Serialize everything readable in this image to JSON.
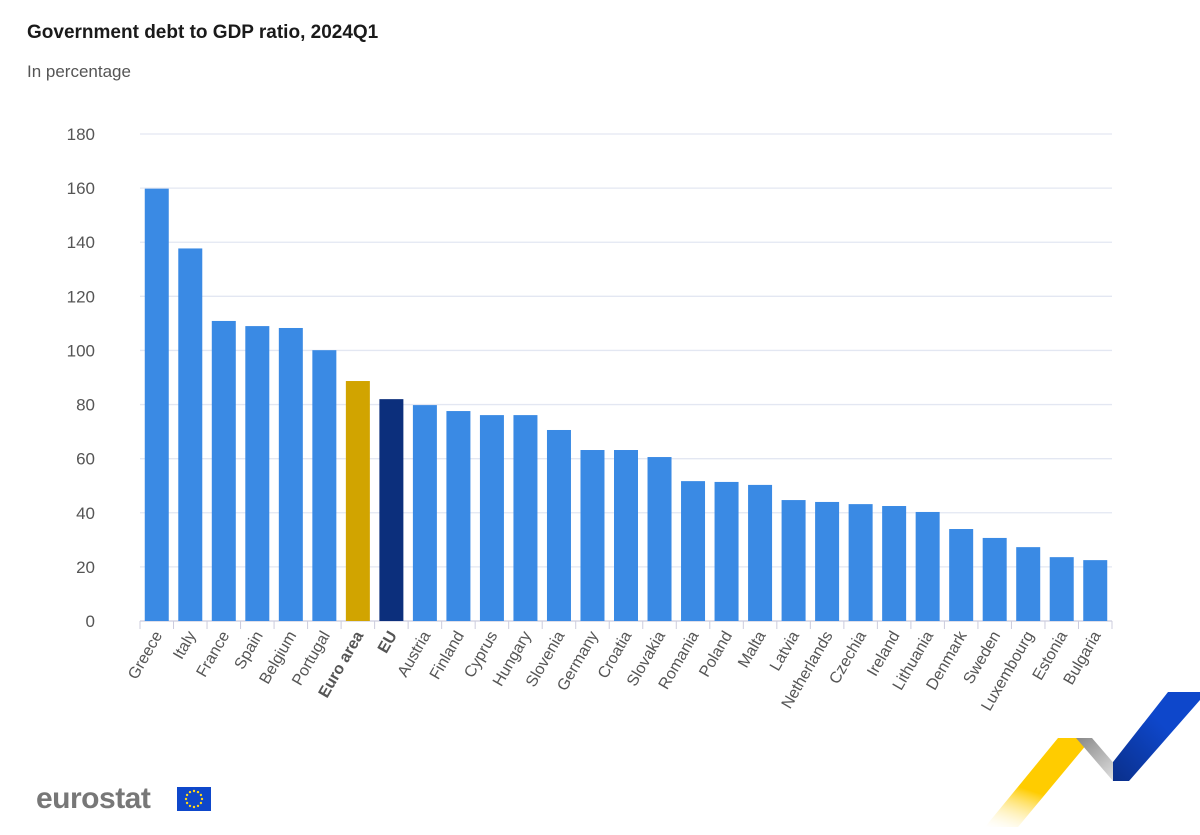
{
  "chart_data": {
    "type": "bar",
    "title": "Government debt to GDP ratio, 2024Q1",
    "subtitle": "In percentage",
    "xlabel": "",
    "ylabel": "",
    "ylim": [
      0,
      180
    ],
    "yticks": [
      0,
      20,
      40,
      60,
      80,
      100,
      120,
      140,
      160,
      180
    ],
    "grid": true,
    "categories": [
      "Greece",
      "Italy",
      "France",
      "Spain",
      "Belgium",
      "Portugal",
      "Euro area",
      "EU",
      "Austria",
      "Finland",
      "Cyprus",
      "Hungary",
      "Slovenia",
      "Germany",
      "Croatia",
      "Slovakia",
      "Romania",
      "Poland",
      "Malta",
      "Latvia",
      "Netherlands",
      "Czechia",
      "Ireland",
      "Lithuania",
      "Denmark",
      "Sweden",
      "Luxembourg",
      "Estonia",
      "Bulgaria"
    ],
    "values": [
      159.8,
      137.7,
      110.9,
      109.0,
      108.3,
      100.1,
      88.7,
      82.0,
      79.8,
      77.6,
      76.1,
      76.1,
      70.6,
      63.2,
      63.2,
      60.6,
      51.7,
      51.4,
      50.3,
      44.7,
      44.0,
      43.2,
      42.5,
      40.3,
      34.0,
      30.7,
      27.3,
      23.6,
      22.5
    ],
    "bold_categories": [
      "Euro area",
      "EU"
    ],
    "colors": {
      "default": "#3a8ae4",
      "Euro area": "#d1a400",
      "EU": "#0c2f7c"
    }
  },
  "branding": {
    "logo_text": "eurostat",
    "flag_color": "#0e47cb",
    "star_color": "#ffd617"
  }
}
